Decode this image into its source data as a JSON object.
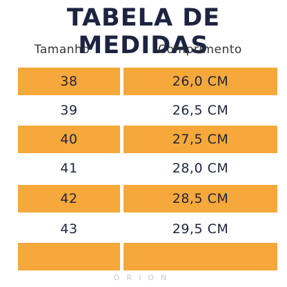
{
  "title": "TABELA DE MEDIDAS",
  "headers": {
    "size": "Tamanho",
    "length": "Comprimento"
  },
  "rows": [
    {
      "size": "38",
      "length": "26,0 CM",
      "highlight": true
    },
    {
      "size": "39",
      "length": "26,5 CM",
      "highlight": false
    },
    {
      "size": "40",
      "length": "27,5 CM",
      "highlight": true
    },
    {
      "size": "41",
      "length": "28,0 CM",
      "highlight": false
    },
    {
      "size": "42",
      "length": "28,5 CM",
      "highlight": true
    },
    {
      "size": "43",
      "length": "29,5 CM",
      "highlight": false
    },
    {
      "size": "",
      "length": "",
      "highlight": true
    }
  ],
  "watermark": "ORION",
  "colors": {
    "accent": "#f6a83a",
    "text": "#1c2440"
  }
}
